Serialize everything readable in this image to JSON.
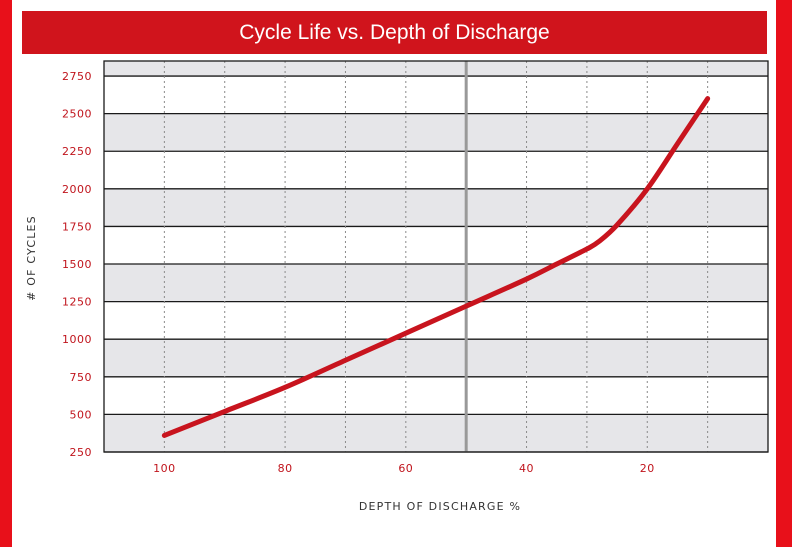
{
  "colors": {
    "frame": "#e8101a",
    "title_bg": "#d0141c",
    "line": "#c8141e",
    "band": "#e6e6e9",
    "tick_text": "#c0141c",
    "midline": "#999999"
  },
  "chart_data": {
    "type": "line",
    "title": "Cycle Life vs. Depth of Discharge",
    "xlabel": "DEPTH OF DISCHARGE %",
    "ylabel": "# OF CYCLES",
    "x_reversed": true,
    "xlim": [
      110,
      0
    ],
    "ylim": [
      250,
      2850
    ],
    "xticks": [
      100,
      80,
      60,
      40,
      20
    ],
    "xtick_labels": [
      "100",
      "80",
      "60",
      "40",
      "20"
    ],
    "yticks": [
      250,
      500,
      750,
      1000,
      1250,
      1500,
      1750,
      2000,
      2250,
      2500,
      2750
    ],
    "ytick_labels": [
      "250",
      "500",
      "750",
      "1000",
      "1250",
      "1500",
      "1750",
      "2000",
      "2250",
      "2500",
      "2750"
    ],
    "vertical_gridlines_dotted": [
      100,
      90,
      80,
      70,
      60,
      40,
      30,
      20,
      10
    ],
    "highlight_vline": 50,
    "grid": true,
    "series": [
      {
        "x": [
          100,
          90,
          80,
          70,
          60,
          50,
          40,
          35,
          30,
          28,
          25,
          20,
          15,
          10
        ],
        "y": [
          360,
          520,
          680,
          860,
          1040,
          1220,
          1400,
          1500,
          1600,
          1650,
          1760,
          2000,
          2300,
          2600
        ]
      }
    ]
  }
}
